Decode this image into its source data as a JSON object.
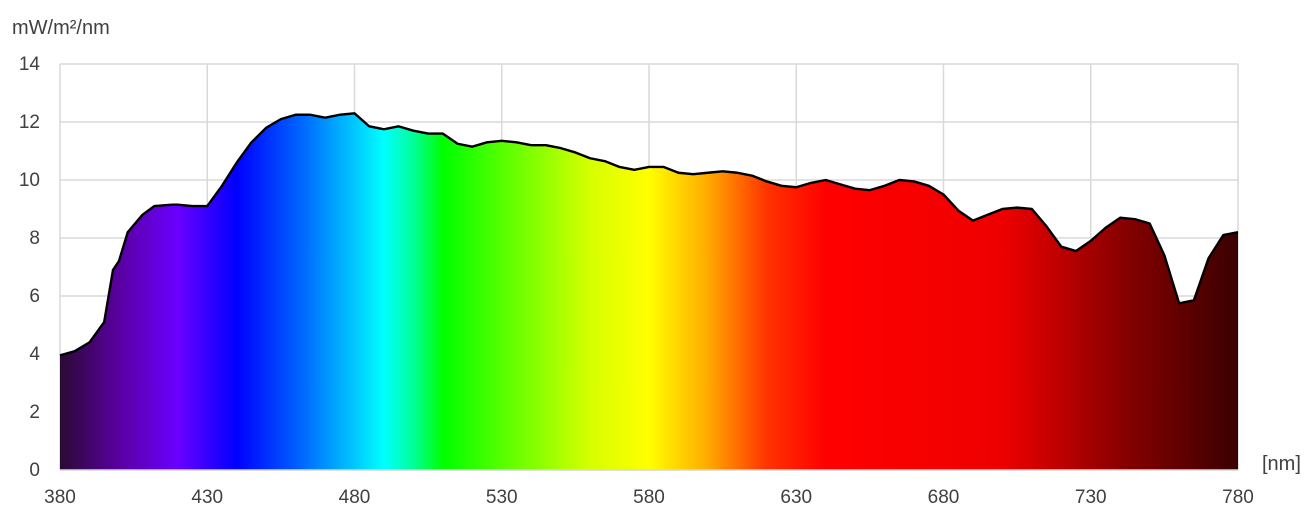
{
  "chart_data": {
    "type": "area",
    "ylabel": "mW/m²/nm",
    "xlabel": "[nm]",
    "xlim": [
      380,
      780
    ],
    "ylim": [
      0,
      14
    ],
    "grid": true,
    "x_ticks": [
      380,
      430,
      480,
      530,
      580,
      630,
      680,
      730,
      780
    ],
    "y_ticks": [
      0,
      2,
      4,
      6,
      8,
      10,
      12,
      14
    ],
    "fill": "visible-spectrum gradient",
    "line_color": "#000000",
    "grid_color": "#d9d9d9",
    "spectrum_colors": [
      {
        "nm": 380,
        "color": "#2a0a33"
      },
      {
        "nm": 400,
        "color": "#5a00a0"
      },
      {
        "nm": 420,
        "color": "#6a00ff"
      },
      {
        "nm": 440,
        "color": "#0000ff"
      },
      {
        "nm": 462,
        "color": "#0066ff"
      },
      {
        "nm": 480,
        "color": "#00c8ff"
      },
      {
        "nm": 490,
        "color": "#00ffff"
      },
      {
        "nm": 500,
        "color": "#00ff99"
      },
      {
        "nm": 510,
        "color": "#00ff00"
      },
      {
        "nm": 540,
        "color": "#80ff00"
      },
      {
        "nm": 560,
        "color": "#d6ff00"
      },
      {
        "nm": 580,
        "color": "#ffff00"
      },
      {
        "nm": 600,
        "color": "#ffaa00"
      },
      {
        "nm": 620,
        "color": "#ff3300"
      },
      {
        "nm": 640,
        "color": "#ff0000"
      },
      {
        "nm": 700,
        "color": "#ee0000"
      },
      {
        "nm": 740,
        "color": "#8a0000"
      },
      {
        "nm": 780,
        "color": "#3a0000"
      }
    ],
    "series": [
      {
        "x": [
          380,
          385,
          390,
          395,
          398,
          400,
          403,
          408,
          412,
          418,
          420,
          425,
          430,
          435,
          440,
          445,
          450,
          455,
          460,
          465,
          470,
          475,
          480,
          485,
          490,
          495,
          500,
          505,
          510,
          515,
          520,
          525,
          530,
          535,
          540,
          545,
          550,
          555,
          560,
          565,
          570,
          575,
          580,
          585,
          590,
          595,
          600,
          605,
          610,
          615,
          620,
          625,
          630,
          635,
          640,
          645,
          650,
          655,
          660,
          665,
          670,
          675,
          680,
          685,
          690,
          695,
          700,
          705,
          710,
          715,
          720,
          725,
          730,
          735,
          740,
          745,
          750,
          755,
          760,
          765,
          770,
          775,
          780
        ],
        "y": [
          3.95,
          4.1,
          4.4,
          5.1,
          6.9,
          7.2,
          8.2,
          8.8,
          9.1,
          9.15,
          9.15,
          9.1,
          9.1,
          9.8,
          10.6,
          11.3,
          11.8,
          12.1,
          12.25,
          12.25,
          12.15,
          12.25,
          12.3,
          11.85,
          11.75,
          11.85,
          11.7,
          11.6,
          11.6,
          11.25,
          11.15,
          11.3,
          11.35,
          11.3,
          11.2,
          11.2,
          11.1,
          10.95,
          10.75,
          10.65,
          10.45,
          10.35,
          10.45,
          10.45,
          10.25,
          10.2,
          10.25,
          10.3,
          10.25,
          10.15,
          9.95,
          9.8,
          9.75,
          9.9,
          10.0,
          9.85,
          9.7,
          9.65,
          9.8,
          10.0,
          9.95,
          9.8,
          9.5,
          8.95,
          8.6,
          8.8,
          9.0,
          9.05,
          9.0,
          8.4,
          7.7,
          7.55,
          7.9,
          8.35,
          8.7,
          8.65,
          8.5,
          7.4,
          5.75,
          5.85,
          7.3,
          8.1,
          8.2
        ]
      }
    ]
  }
}
